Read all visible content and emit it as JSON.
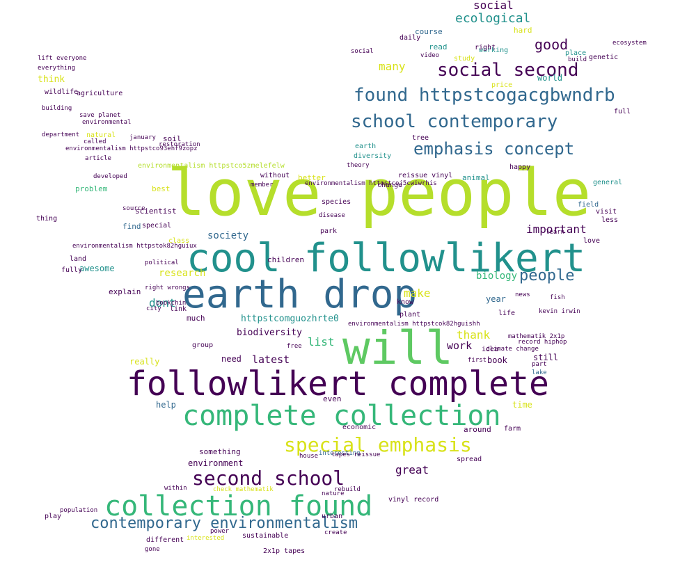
{
  "wordcloud": {
    "shape": "bird-silhouette",
    "background": "#ffffff",
    "palette": [
      "#440154",
      "#3b528b",
      "#21918c",
      "#5ec962",
      "#fde725",
      "#b5de2b",
      "#31688e",
      "#35b779"
    ],
    "words": [
      {
        "text": "love people",
        "color": "#b5de2b"
      },
      {
        "text": "cool followlikert",
        "color": "#21918c"
      },
      {
        "text": "earth drop",
        "color": "#31688e"
      },
      {
        "text": "will",
        "color": "#5ec962"
      },
      {
        "text": "followlikert complete",
        "color": "#440154"
      },
      {
        "text": "complete collection",
        "color": "#35b779"
      },
      {
        "text": "collection found",
        "color": "#35b779"
      },
      {
        "text": "special emphasis",
        "color": "#d8e219"
      },
      {
        "text": "second school",
        "color": "#440154"
      },
      {
        "text": "contemporary environmentalism",
        "color": "#31688e"
      },
      {
        "text": "found httpstcogacgbwndrb",
        "color": "#31688e"
      },
      {
        "text": "school contemporary",
        "color": "#31688e"
      },
      {
        "text": "social second",
        "color": "#440154"
      },
      {
        "text": "emphasis concept",
        "color": "#31688e"
      },
      {
        "text": "ecological",
        "color": "#21918c"
      },
      {
        "text": "social",
        "color": "#440154"
      },
      {
        "text": "good",
        "color": "#440154"
      },
      {
        "text": "people",
        "color": "#31688e"
      },
      {
        "text": "biology",
        "color": "#35b779"
      },
      {
        "text": "important",
        "color": "#440154"
      },
      {
        "text": "research",
        "color": "#d8e219"
      },
      {
        "text": "society",
        "color": "#31688e"
      },
      {
        "text": "dont",
        "color": "#21918c"
      },
      {
        "text": "httpstcomguozhrte0",
        "color": "#21918c"
      },
      {
        "text": "biodiversity",
        "color": "#440154"
      },
      {
        "text": "latest",
        "color": "#440154"
      },
      {
        "text": "list",
        "color": "#35b779"
      },
      {
        "text": "thank",
        "color": "#d8e219"
      },
      {
        "text": "work",
        "color": "#440154"
      },
      {
        "text": "make",
        "color": "#d8e219"
      },
      {
        "text": "need",
        "color": "#440154"
      },
      {
        "text": "really",
        "color": "#d8e219"
      },
      {
        "text": "great",
        "color": "#440154"
      },
      {
        "text": "environment",
        "color": "#440154"
      },
      {
        "text": "something",
        "color": "#440154"
      },
      {
        "text": "help",
        "color": "#31688e"
      },
      {
        "text": "many",
        "color": "#d8e219"
      },
      {
        "text": "think",
        "color": "#d8e219"
      },
      {
        "text": "problem",
        "color": "#35b779"
      },
      {
        "text": "better",
        "color": "#d8e219"
      },
      {
        "text": "year",
        "color": "#31688e"
      },
      {
        "text": "book",
        "color": "#440154"
      },
      {
        "text": "still",
        "color": "#440154"
      },
      {
        "text": "around",
        "color": "#440154"
      },
      {
        "text": "time",
        "color": "#d8e219"
      },
      {
        "text": "even",
        "color": "#440154"
      },
      {
        "text": "much",
        "color": "#440154"
      },
      {
        "text": "children",
        "color": "#440154"
      },
      {
        "text": "world",
        "color": "#21918c"
      },
      {
        "text": "awesome",
        "color": "#21918c"
      },
      {
        "text": "explain",
        "color": "#440154"
      },
      {
        "text": "scientist",
        "color": "#440154"
      },
      {
        "text": "wildlife",
        "color": "#440154"
      },
      {
        "text": "agriculture",
        "color": "#440154"
      },
      {
        "text": "environmental",
        "color": "#440154"
      },
      {
        "text": "environmentalism httpstco93ehf9zopz",
        "color": "#440154"
      },
      {
        "text": "environmentalism httpstco5zmelefelw",
        "color": "#b5de2b"
      },
      {
        "text": "environmentalism httpstcoj5cwiwrhis",
        "color": "#440154"
      },
      {
        "text": "environmentalism httpstcok82hguishh",
        "color": "#440154"
      },
      {
        "text": "environmentalism httpstok82hguiux",
        "color": "#440154"
      },
      {
        "text": "genetic",
        "color": "#440154"
      },
      {
        "text": "ecosystem",
        "color": "#440154"
      },
      {
        "text": "daily",
        "color": "#440154"
      },
      {
        "text": "course",
        "color": "#31688e"
      },
      {
        "text": "read",
        "color": "#21918c"
      },
      {
        "text": "study",
        "color": "#d8e219"
      },
      {
        "text": "price",
        "color": "#d8e219"
      },
      {
        "text": "hard",
        "color": "#d8e219"
      },
      {
        "text": "place",
        "color": "#21918c"
      },
      {
        "text": "build",
        "color": "#440154"
      },
      {
        "text": "full",
        "color": "#440154"
      },
      {
        "text": "general",
        "color": "#21918c"
      },
      {
        "text": "field",
        "color": "#31688e"
      },
      {
        "text": "love",
        "color": "#440154"
      },
      {
        "text": "visit",
        "color": "#440154"
      },
      {
        "text": "less",
        "color": "#440154"
      },
      {
        "text": "animal",
        "color": "#21918c"
      },
      {
        "text": "change",
        "color": "#440154"
      },
      {
        "text": "earth",
        "color": "#21918c"
      },
      {
        "text": "diversity",
        "color": "#21918c"
      },
      {
        "text": "tree",
        "color": "#440154"
      },
      {
        "text": "happy",
        "color": "#440154"
      },
      {
        "text": "learn",
        "color": "#440154"
      },
      {
        "text": "news",
        "color": "#440154"
      },
      {
        "text": "life",
        "color": "#440154"
      },
      {
        "text": "idea",
        "color": "#440154"
      },
      {
        "text": "plant",
        "color": "#440154"
      },
      {
        "text": "know",
        "color": "#440154"
      },
      {
        "text": "park",
        "color": "#440154"
      },
      {
        "text": "fish",
        "color": "#440154"
      },
      {
        "text": "part",
        "color": "#440154"
      },
      {
        "text": "lake",
        "color": "#31688e"
      },
      {
        "text": "farm",
        "color": "#440154"
      },
      {
        "text": "economic",
        "color": "#440154"
      },
      {
        "text": "interesting",
        "color": "#31688e"
      },
      {
        "text": "house",
        "color": "#440154"
      },
      {
        "text": "spread",
        "color": "#440154"
      },
      {
        "text": "vinyl record",
        "color": "#440154"
      },
      {
        "text": "tapes reissue",
        "color": "#440154"
      },
      {
        "text": "nature",
        "color": "#440154"
      },
      {
        "text": "rebuild",
        "color": "#440154"
      },
      {
        "text": "urban",
        "color": "#440154"
      },
      {
        "text": "create",
        "color": "#440154"
      },
      {
        "text": "sustainable",
        "color": "#440154"
      },
      {
        "text": "2x1p tapes",
        "color": "#440154"
      },
      {
        "text": "power",
        "color": "#440154"
      },
      {
        "text": "interested",
        "color": "#d8e219"
      },
      {
        "text": "different",
        "color": "#440154"
      },
      {
        "text": "gone",
        "color": "#440154"
      },
      {
        "text": "play",
        "color": "#440154"
      },
      {
        "text": "population",
        "color": "#440154"
      },
      {
        "text": "within",
        "color": "#440154"
      },
      {
        "text": "special",
        "color": "#440154"
      },
      {
        "text": "best",
        "color": "#d8e219"
      },
      {
        "text": "soil",
        "color": "#440154"
      },
      {
        "text": "find",
        "color": "#31688e"
      },
      {
        "text": "thing",
        "color": "#440154"
      },
      {
        "text": "land",
        "color": "#440154"
      },
      {
        "text": "fully",
        "color": "#440154"
      },
      {
        "text": "source",
        "color": "#440154"
      },
      {
        "text": "class",
        "color": "#d8e219"
      },
      {
        "text": "political",
        "color": "#440154"
      },
      {
        "text": "bookchin",
        "color": "#440154"
      },
      {
        "text": "without",
        "color": "#440154"
      },
      {
        "text": "record hiphop",
        "color": "#440154"
      },
      {
        "text": "climate change",
        "color": "#440154"
      },
      {
        "text": "mathematik 2x1p",
        "color": "#440154"
      },
      {
        "text": "kevin irwin",
        "color": "#440154"
      },
      {
        "text": "check mathematik",
        "color": "#d8e219"
      },
      {
        "text": "save planet",
        "color": "#440154"
      },
      {
        "text": "natural",
        "color": "#d8e219"
      },
      {
        "text": "called",
        "color": "#440154"
      },
      {
        "text": "lift everyone",
        "color": "#440154"
      },
      {
        "text": "social",
        "color": "#440154"
      },
      {
        "text": "video",
        "color": "#440154"
      },
      {
        "text": "working",
        "color": "#21918c"
      },
      {
        "text": "right",
        "color": "#440154"
      },
      {
        "text": "reissue vinyl",
        "color": "#440154"
      },
      {
        "text": "theory",
        "color": "#440154"
      },
      {
        "text": "species",
        "color": "#440154"
      },
      {
        "text": "disease",
        "color": "#440154"
      },
      {
        "text": "group",
        "color": "#440154"
      },
      {
        "text": "free",
        "color": "#440154"
      },
      {
        "text": "link",
        "color": "#440154"
      },
      {
        "text": "city",
        "color": "#440154"
      },
      {
        "text": "right wrongs",
        "color": "#440154"
      },
      {
        "text": "first",
        "color": "#440154"
      },
      {
        "text": "everything",
        "color": "#440154"
      },
      {
        "text": "building",
        "color": "#440154"
      },
      {
        "text": "department",
        "color": "#440154"
      },
      {
        "text": "member",
        "color": "#440154"
      },
      {
        "text": "developed",
        "color": "#440154"
      },
      {
        "text": "article",
        "color": "#440154"
      },
      {
        "text": "restoration",
        "color": "#440154"
      },
      {
        "text": "january",
        "color": "#440154"
      }
    ]
  }
}
